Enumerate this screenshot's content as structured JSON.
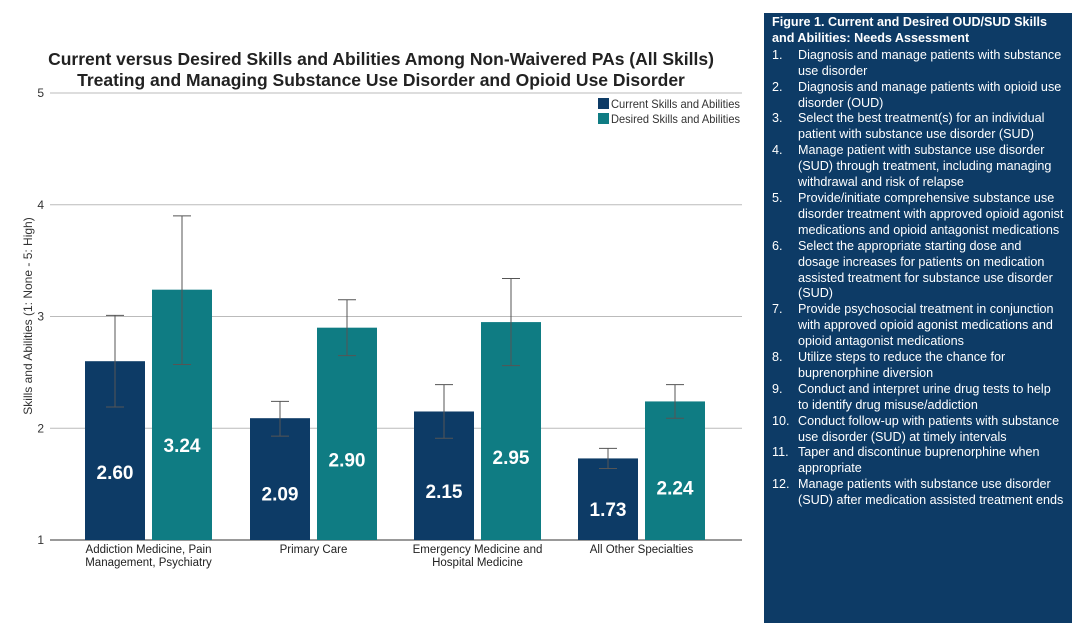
{
  "chart_data": {
    "type": "bar",
    "title_lines": [
      "Current versus Desired Skills and Abilities Among Non-Waivered PAs (All Skills)",
      "Treating and Managing Substance Use Disorder and Opioid Use Disorder"
    ],
    "ylabel": "Skills and Abilities (1: None - 5: High)",
    "xlabel": "",
    "ylim": [
      1,
      5
    ],
    "yticks": [
      "1",
      "2",
      "3",
      "4",
      "5"
    ],
    "grid": true,
    "legend_position": "top-right",
    "categories": [
      [
        "Addiction Medicine, Pain",
        "Management, Psychiatry"
      ],
      [
        "Primary Care"
      ],
      [
        "Emergency Medicine and",
        "Hospital Medicine"
      ],
      [
        "All Other Specialties"
      ]
    ],
    "series": [
      {
        "name": "Current Skills and Abilities",
        "color": "#0d3b66",
        "values": [
          2.6,
          2.09,
          2.15,
          1.73
        ],
        "labels": [
          "2.60",
          "2.09",
          "2.15",
          "1.73"
        ],
        "error_low": [
          2.19,
          1.93,
          1.91,
          1.64
        ],
        "error_high": [
          3.01,
          2.24,
          2.39,
          1.82
        ]
      },
      {
        "name": "Desired Skills and Abilities",
        "color": "#0f7c83",
        "values": [
          3.24,
          2.9,
          2.95,
          2.24
        ],
        "labels": [
          "3.24",
          "2.90",
          "2.95",
          "2.24"
        ],
        "error_low": [
          2.57,
          2.65,
          2.56,
          2.09
        ],
        "error_high": [
          3.9,
          3.15,
          3.34,
          2.39
        ]
      }
    ]
  },
  "panel": {
    "title": "Figure 1. Current and Desired OUD/SUD Skills and Abilities: Needs Assessment",
    "items": [
      {
        "num": "1.",
        "text": "Diagnosis and manage patients with substance use disorder"
      },
      {
        "num": "2.",
        "text": "Diagnosis and manage patients with opioid use disorder (OUD)"
      },
      {
        "num": "3.",
        "text": "Select the best treatment(s) for an individual patient with substance use disorder (SUD)"
      },
      {
        "num": "4.",
        "text": "Manage patient with substance use disorder (SUD) through treatment, including managing withdrawal and risk of relapse"
      },
      {
        "num": "5.",
        "text": "Provide/initiate comprehensive substance use disorder treatment with approved opioid agonist medications and opioid antagonist medications"
      },
      {
        "num": "6.",
        "text": "Select the appropriate starting dose and dosage increases for patients on medication assisted treatment for substance use disorder (SUD)"
      },
      {
        "num": "7.",
        "text": "Provide psychosocial treatment in conjunction with approved opioid agonist medications and opioid antagonist medications"
      },
      {
        "num": "8.",
        "text": "Utilize steps to reduce the chance for buprenorphine diversion"
      },
      {
        "num": "9.",
        "text": "Conduct and interpret urine drug tests to help to identify drug misuse/addiction"
      },
      {
        "num": "10.",
        "text": "Conduct follow-up with patients with substance use disorder (SUD) at timely intervals"
      },
      {
        "num": "11.",
        "text": "Taper and discontinue buprenorphine when appropriate"
      },
      {
        "num": "12.",
        "text": "Manage patients with substance use disorder (SUD) after medication assisted treatment ends"
      }
    ]
  }
}
